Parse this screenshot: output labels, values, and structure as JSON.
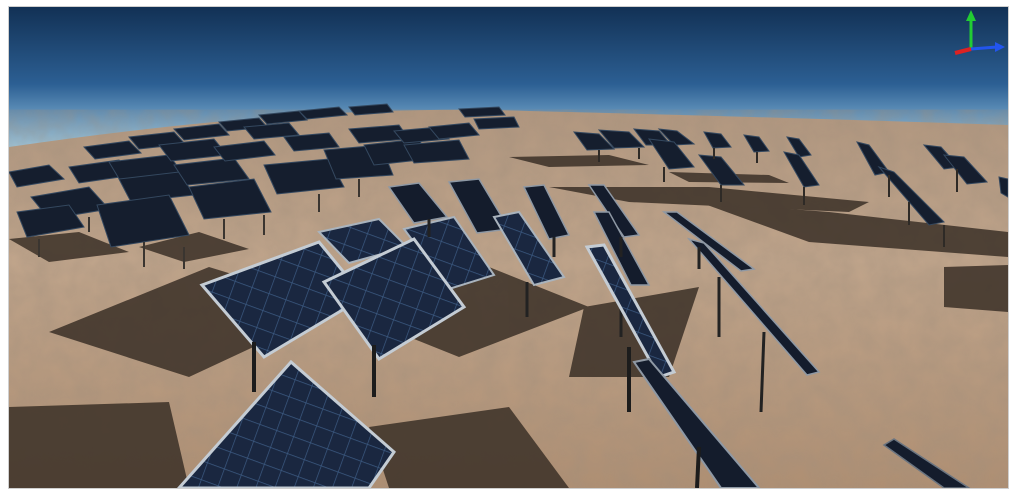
{
  "scene": {
    "sky_top": "#1b3f68",
    "sky_horizon": "#8fbcdc",
    "ground_light": "#c9ab8e",
    "ground_dark": "#7a6450",
    "panel_fill": "#1c2a44",
    "panel_grid": "#3f5d86",
    "panel_frame": "#b9c2cc",
    "shadow": "#3a2f26",
    "pole": "#2a2a2a"
  },
  "gizmo": {
    "y_axis_color": "#22cc33",
    "x_axis_color": "#dd2222",
    "z_axis_color": "#2255ee"
  }
}
